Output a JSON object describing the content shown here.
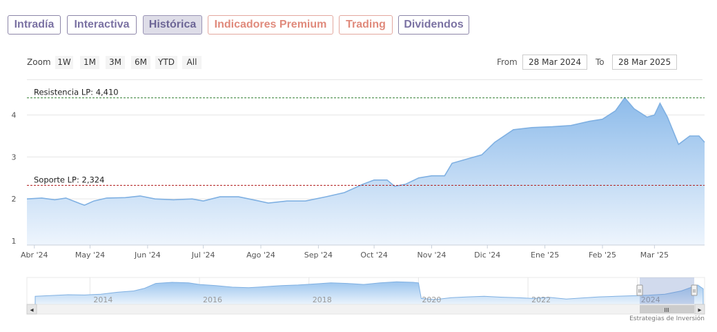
{
  "tabs": [
    {
      "label": "Intradía",
      "style": "purple"
    },
    {
      "label": "Interactiva",
      "style": "purple"
    },
    {
      "label": "Histórica",
      "style": "active"
    },
    {
      "label": "Indicadores Premium",
      "style": "red"
    },
    {
      "label": "Trading",
      "style": "red"
    },
    {
      "label": "Dividendos",
      "style": "purple"
    }
  ],
  "zoom": {
    "label": "Zoom",
    "buttons": [
      "1W",
      "1M",
      "3M",
      "6M",
      "YTD",
      "All"
    ]
  },
  "range": {
    "from_label": "From",
    "from_value": "28 Mar 2024",
    "to_label": "To",
    "to_value": "28 Mar 2025"
  },
  "credits": "Estrategias de Inversión",
  "colors": {
    "line": "#7fb0e2",
    "fill_top": "#8dbbea",
    "fill_bottom": "#eef5fd",
    "resistance": "#2e7d2e",
    "support": "#b22222",
    "navigator_mask": "rgba(102,133,194,0.3)"
  },
  "chart_data": {
    "type": "area",
    "ylim": [
      0.9,
      4.8
    ],
    "yticks": [
      1,
      2,
      3,
      4
    ],
    "ytick_labels": [
      "1",
      "2",
      "3",
      "4"
    ],
    "xticks": [
      "Abr '24",
      "May '24",
      "Jun '24",
      "Jul '24",
      "Ago '24",
      "Sep '24",
      "Oct '24",
      "Nov '24",
      "Dic '24",
      "Ene '25",
      "Feb '25",
      "Mar '25"
    ],
    "xtick_dates": [
      "2024-04-01",
      "2024-05-01",
      "2024-06-01",
      "2024-07-01",
      "2024-08-01",
      "2024-09-01",
      "2024-10-01",
      "2024-11-01",
      "2024-12-01",
      "2025-01-01",
      "2025-02-01",
      "2025-03-01"
    ],
    "x_range": [
      "2024-03-28",
      "2025-03-28"
    ],
    "grid": "horizontal",
    "plot_lines": [
      {
        "label": "Resistencia LP: 4,410",
        "value": 4.41,
        "color": "resistance"
      },
      {
        "label": "Soporte LP: 2,324",
        "value": 2.324,
        "color": "support"
      }
    ],
    "series": [
      {
        "points": [
          [
            "2024-03-28",
            2.0
          ],
          [
            "2024-04-05",
            2.02
          ],
          [
            "2024-04-12",
            1.98
          ],
          [
            "2024-04-18",
            2.02
          ],
          [
            "2024-04-26",
            1.88
          ],
          [
            "2024-04-28",
            1.85
          ],
          [
            "2024-05-03",
            1.95
          ],
          [
            "2024-05-10",
            2.02
          ],
          [
            "2024-05-20",
            2.03
          ],
          [
            "2024-05-28",
            2.07
          ],
          [
            "2024-06-05",
            2.0
          ],
          [
            "2024-06-15",
            1.98
          ],
          [
            "2024-06-25",
            2.0
          ],
          [
            "2024-07-01",
            1.95
          ],
          [
            "2024-07-10",
            2.05
          ],
          [
            "2024-07-20",
            2.05
          ],
          [
            "2024-07-31",
            1.95
          ],
          [
            "2024-08-05",
            1.9
          ],
          [
            "2024-08-15",
            1.95
          ],
          [
            "2024-08-25",
            1.95
          ],
          [
            "2024-09-05",
            2.05
          ],
          [
            "2024-09-15",
            2.15
          ],
          [
            "2024-09-25",
            2.35
          ],
          [
            "2024-10-01",
            2.45
          ],
          [
            "2024-10-08",
            2.45
          ],
          [
            "2024-10-12",
            2.3
          ],
          [
            "2024-10-18",
            2.35
          ],
          [
            "2024-10-25",
            2.5
          ],
          [
            "2024-11-01",
            2.55
          ],
          [
            "2024-11-08",
            2.55
          ],
          [
            "2024-11-12",
            2.85
          ],
          [
            "2024-11-20",
            2.95
          ],
          [
            "2024-11-28",
            3.05
          ],
          [
            "2024-12-05",
            3.35
          ],
          [
            "2024-12-15",
            3.65
          ],
          [
            "2024-12-25",
            3.7
          ],
          [
            "2025-01-05",
            3.72
          ],
          [
            "2025-01-15",
            3.75
          ],
          [
            "2025-01-25",
            3.85
          ],
          [
            "2025-02-01",
            3.9
          ],
          [
            "2025-02-08",
            4.1
          ],
          [
            "2025-02-13",
            4.41
          ],
          [
            "2025-02-18",
            4.15
          ],
          [
            "2025-02-25",
            3.95
          ],
          [
            "2025-03-01",
            4.0
          ],
          [
            "2025-03-04",
            4.28
          ],
          [
            "2025-03-08",
            3.95
          ],
          [
            "2025-03-14",
            3.3
          ],
          [
            "2025-03-20",
            3.5
          ],
          [
            "2025-03-25",
            3.5
          ],
          [
            "2025-03-28",
            3.35
          ]
        ]
      }
    ]
  },
  "navigator": {
    "labels": [
      "2014",
      "2016",
      "2018",
      "2020",
      "2022",
      "2024"
    ],
    "scroll_grip": "III",
    "left_arrow": "◂",
    "right_arrow": "▸",
    "handle_glyph": "II"
  }
}
